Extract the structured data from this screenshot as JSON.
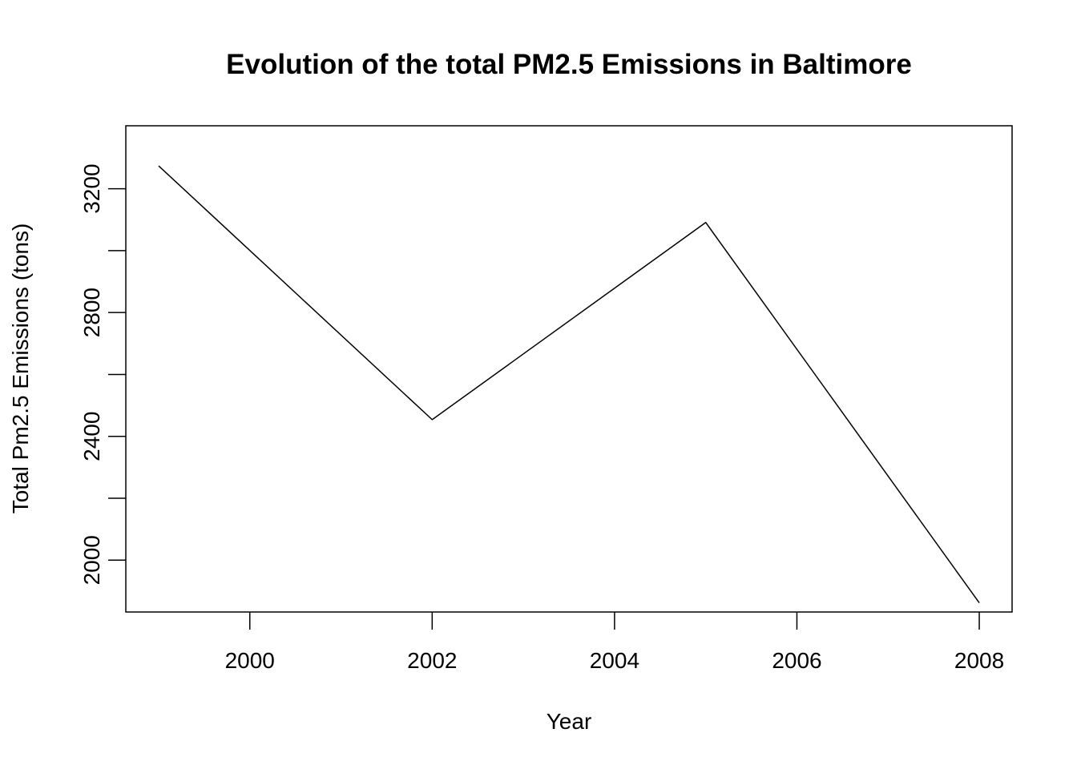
{
  "chart_data": {
    "type": "line",
    "title": "Evolution of the total PM2.5 Emissions in Baltimore",
    "xlabel": "Year",
    "ylabel": "Total Pm2.5 Emissions (tons)",
    "x": [
      1999,
      2002,
      2005,
      2008
    ],
    "series": [
      {
        "values": [
          3274,
          2454,
          3091,
          1862
        ],
        "color": "#000000"
      }
    ],
    "xlim": [
      1998.64,
      2008.36
    ],
    "ylim": [
      1832.5,
      3403.5
    ],
    "x_ticks": [
      2000,
      2002,
      2004,
      2006,
      2008
    ],
    "y_ticks": [
      2000,
      2200,
      2400,
      2600,
      2800,
      3000,
      3200
    ],
    "y_tick_labels": [
      {
        "value": 2000,
        "label": "2000"
      },
      {
        "value": 2400,
        "label": "2400"
      },
      {
        "value": 2800,
        "label": "2800"
      },
      {
        "value": 3200,
        "label": "3200"
      }
    ],
    "grid": false,
    "legend": "none"
  }
}
